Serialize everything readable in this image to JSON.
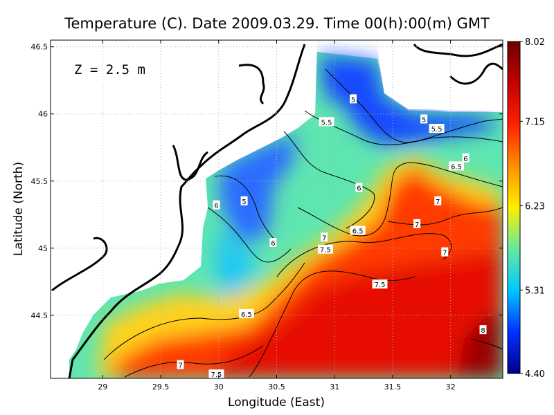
{
  "chart_data": {
    "type": "heatmap",
    "title": "Temperature (C). Date 2009.03.29. Time 00(h):00(m) GMT",
    "xlabel": "Longitude (East)",
    "ylabel": "Latitude (North)",
    "annotation": "Z = 2.5 m",
    "xlim": [
      28.55,
      32.45
    ],
    "ylim": [
      44.03,
      46.55
    ],
    "x_ticks": [
      29,
      29.5,
      30,
      30.5,
      31,
      31.5,
      32
    ],
    "x_tick_labels": [
      "29",
      "29.5",
      "30",
      "30.5",
      "31",
      "31.5",
      "32"
    ],
    "y_ticks": [
      44.5,
      45,
      45.5,
      46,
      46.5
    ],
    "y_tick_labels": [
      "44.5",
      "45",
      "45.5",
      "46",
      "46.5"
    ],
    "grid": true,
    "colorbar": {
      "min": 4.4,
      "max": 8.02,
      "tick_values": [
        8.02,
        7.15,
        6.23,
        5.31,
        4.4
      ],
      "tick_labels": [
        "8.02",
        "7.15",
        "6.23",
        "5.31",
        "4.40"
      ]
    },
    "colors": [
      "#00008c",
      "#0030ff",
      "#00c8ff",
      "#66e8a0",
      "#ffee00",
      "#ff9000",
      "#ff2000",
      "#c40000",
      "#700000"
    ],
    "contour_labels": [
      {
        "text": "5",
        "lon": 31.16,
        "lat": 46.11
      },
      {
        "text": "5.5",
        "lon": 30.93,
        "lat": 45.94
      },
      {
        "text": "5",
        "lon": 31.77,
        "lat": 45.96
      },
      {
        "text": "5.5",
        "lon": 31.88,
        "lat": 45.89
      },
      {
        "text": "6",
        "lon": 32.13,
        "lat": 45.67
      },
      {
        "text": "6.5",
        "lon": 32.05,
        "lat": 45.61
      },
      {
        "text": "6",
        "lon": 31.21,
        "lat": 45.45
      },
      {
        "text": "5",
        "lon": 30.22,
        "lat": 45.35
      },
      {
        "text": "6",
        "lon": 29.98,
        "lat": 45.32
      },
      {
        "text": "7",
        "lon": 31.89,
        "lat": 45.35
      },
      {
        "text": "7",
        "lon": 31.71,
        "lat": 45.18
      },
      {
        "text": "6.5",
        "lon": 31.2,
        "lat": 45.13
      },
      {
        "text": "7",
        "lon": 30.91,
        "lat": 45.08
      },
      {
        "text": "6",
        "lon": 30.47,
        "lat": 45.04
      },
      {
        "text": "7.5",
        "lon": 30.92,
        "lat": 44.99
      },
      {
        "text": "7",
        "lon": 31.95,
        "lat": 44.97
      },
      {
        "text": "7.5",
        "lon": 31.39,
        "lat": 44.73
      },
      {
        "text": "6.5",
        "lon": 30.24,
        "lat": 44.51
      },
      {
        "text": "8",
        "lon": 32.28,
        "lat": 44.39
      },
      {
        "text": "7",
        "lon": 29.67,
        "lat": 44.13
      },
      {
        "text": "7.5",
        "lon": 29.98,
        "lat": 44.06
      }
    ]
  }
}
